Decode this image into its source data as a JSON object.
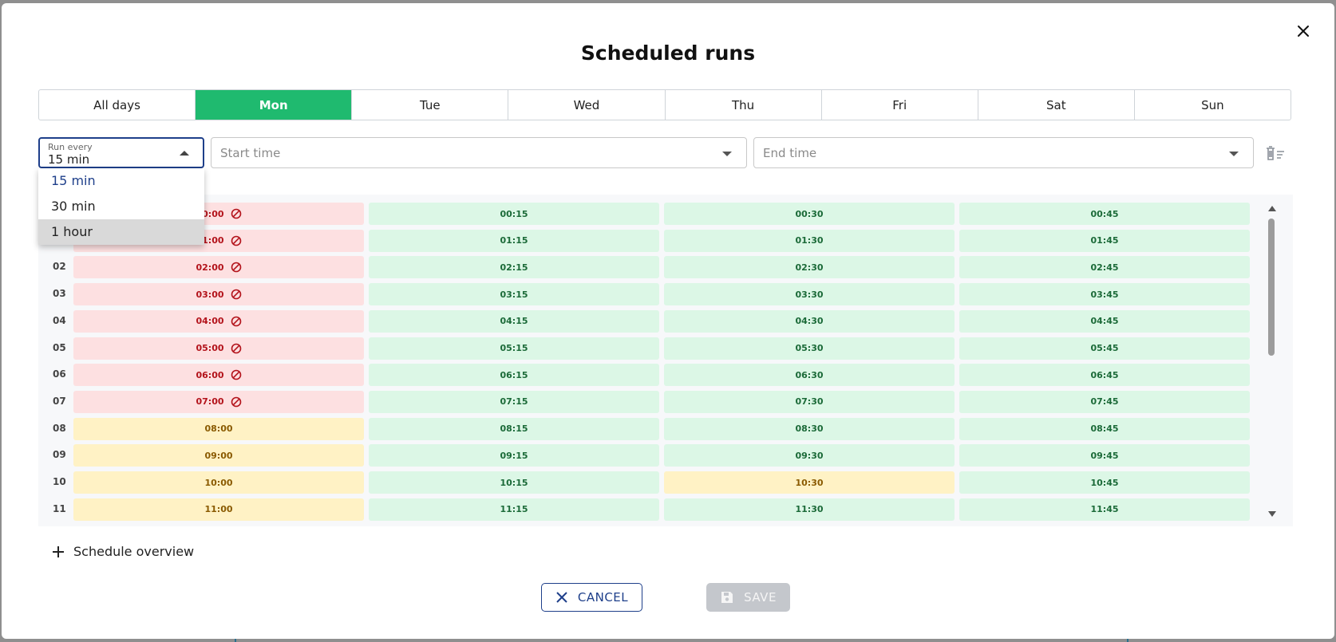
{
  "modal": {
    "title": "Scheduled runs"
  },
  "days": {
    "tabs": [
      "All days",
      "Mon",
      "Tue",
      "Wed",
      "Thu",
      "Fri",
      "Sat",
      "Sun"
    ],
    "active": "Mon"
  },
  "filters": {
    "run_every": {
      "label": "Run every",
      "value": "15 min"
    },
    "start_time": {
      "placeholder": "Start time"
    },
    "end_time": {
      "placeholder": "End time"
    }
  },
  "run_every_options": {
    "items": [
      "15 min",
      "30 min",
      "1 hour"
    ],
    "selected": "15 min",
    "highlighted": "1 hour"
  },
  "schedule": {
    "hours": [
      "00",
      "01",
      "02",
      "03",
      "04",
      "05",
      "06",
      "07",
      "08",
      "09",
      "10",
      "11"
    ],
    "visible_hour_labels": [
      "",
      "",
      "02",
      "03",
      "04",
      "05",
      "06",
      "07",
      "08",
      "09",
      "10",
      "11"
    ],
    "rows": [
      [
        {
          "t": "00:00",
          "s": "red"
        },
        {
          "t": "00:15",
          "s": "green"
        },
        {
          "t": "00:30",
          "s": "green"
        },
        {
          "t": "00:45",
          "s": "green"
        }
      ],
      [
        {
          "t": "01:00",
          "s": "red"
        },
        {
          "t": "01:15",
          "s": "green"
        },
        {
          "t": "01:30",
          "s": "green"
        },
        {
          "t": "01:45",
          "s": "green"
        }
      ],
      [
        {
          "t": "02:00",
          "s": "red"
        },
        {
          "t": "02:15",
          "s": "green"
        },
        {
          "t": "02:30",
          "s": "green"
        },
        {
          "t": "02:45",
          "s": "green"
        }
      ],
      [
        {
          "t": "03:00",
          "s": "red"
        },
        {
          "t": "03:15",
          "s": "green"
        },
        {
          "t": "03:30",
          "s": "green"
        },
        {
          "t": "03:45",
          "s": "green"
        }
      ],
      [
        {
          "t": "04:00",
          "s": "red"
        },
        {
          "t": "04:15",
          "s": "green"
        },
        {
          "t": "04:30",
          "s": "green"
        },
        {
          "t": "04:45",
          "s": "green"
        }
      ],
      [
        {
          "t": "05:00",
          "s": "red"
        },
        {
          "t": "05:15",
          "s": "green"
        },
        {
          "t": "05:30",
          "s": "green"
        },
        {
          "t": "05:45",
          "s": "green"
        }
      ],
      [
        {
          "t": "06:00",
          "s": "red"
        },
        {
          "t": "06:15",
          "s": "green"
        },
        {
          "t": "06:30",
          "s": "green"
        },
        {
          "t": "06:45",
          "s": "green"
        }
      ],
      [
        {
          "t": "07:00",
          "s": "red"
        },
        {
          "t": "07:15",
          "s": "green"
        },
        {
          "t": "07:30",
          "s": "green"
        },
        {
          "t": "07:45",
          "s": "green"
        }
      ],
      [
        {
          "t": "08:00",
          "s": "yellow"
        },
        {
          "t": "08:15",
          "s": "green"
        },
        {
          "t": "08:30",
          "s": "green"
        },
        {
          "t": "08:45",
          "s": "green"
        }
      ],
      [
        {
          "t": "09:00",
          "s": "yellow"
        },
        {
          "t": "09:15",
          "s": "green"
        },
        {
          "t": "09:30",
          "s": "green"
        },
        {
          "t": "09:45",
          "s": "green"
        }
      ],
      [
        {
          "t": "10:00",
          "s": "yellow"
        },
        {
          "t": "10:15",
          "s": "green"
        },
        {
          "t": "10:30",
          "s": "yellow"
        },
        {
          "t": "10:45",
          "s": "green"
        }
      ],
      [
        {
          "t": "11:00",
          "s": "yellow"
        },
        {
          "t": "11:15",
          "s": "green"
        },
        {
          "t": "11:30",
          "s": "green"
        },
        {
          "t": "11:45",
          "s": "green"
        }
      ]
    ],
    "status_colors": {
      "green": "#dcf7e6",
      "red": "#fde0e1",
      "yellow": "#fff2c5"
    },
    "blocked_icon": "ban-icon"
  },
  "overview": {
    "label": "Schedule overview",
    "icon": "plus-icon"
  },
  "actions": {
    "cancel_label": "CANCEL",
    "save_label": "SAVE",
    "save_enabled": false
  },
  "colors": {
    "accent": "#1fba6f",
    "primary": "#1e3f8a"
  }
}
